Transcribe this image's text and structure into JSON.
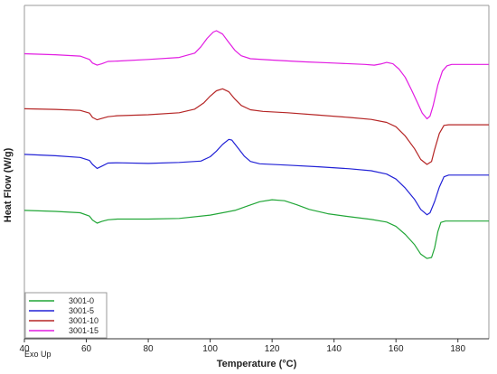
{
  "chart_data": {
    "type": "line",
    "title": "",
    "xlabel": "Temperature (°C)",
    "ylabel": "Heat Flow (W/g)",
    "xlim": [
      40,
      190
    ],
    "ylim": [
      0,
      100
    ],
    "x_ticks": [
      40,
      60,
      80,
      100,
      120,
      140,
      160,
      180
    ],
    "y_ticks_shown": false,
    "grid": false,
    "legend_position": "bottom-left",
    "annotation": "Exo Up",
    "series": [
      {
        "name": "3001-0",
        "color": "#21a637",
        "points": [
          [
            40,
            38.5
          ],
          [
            50,
            38.2
          ],
          [
            58,
            37.8
          ],
          [
            61,
            36.8
          ],
          [
            62,
            35.6
          ],
          [
            63.5,
            34.7
          ],
          [
            65,
            35.2
          ],
          [
            67,
            35.7
          ],
          [
            70,
            35.9
          ],
          [
            80,
            35.9
          ],
          [
            90,
            36.1
          ],
          [
            100,
            37.1
          ],
          [
            108,
            38.5
          ],
          [
            112,
            39.8
          ],
          [
            116,
            41.1
          ],
          [
            120,
            41.7
          ],
          [
            124,
            41.4
          ],
          [
            128,
            40.2
          ],
          [
            132,
            38.8
          ],
          [
            138,
            37.5
          ],
          [
            145,
            36.6
          ],
          [
            152,
            35.8
          ],
          [
            157,
            35.0
          ],
          [
            160,
            33.7
          ],
          [
            163,
            31.3
          ],
          [
            166,
            28.2
          ],
          [
            168,
            25.4
          ],
          [
            170,
            24.1
          ],
          [
            171.5,
            24.4
          ],
          [
            172.5,
            27.3
          ],
          [
            173.5,
            32.1
          ],
          [
            174.5,
            34.9
          ],
          [
            176,
            35.3
          ],
          [
            185,
            35.3
          ],
          [
            190,
            35.3
          ]
        ]
      },
      {
        "name": "3001-5",
        "color": "#2222d6",
        "points": [
          [
            40,
            55.3
          ],
          [
            50,
            54.9
          ],
          [
            58,
            54.4
          ],
          [
            61,
            53.5
          ],
          [
            62,
            52.3
          ],
          [
            63.5,
            51.1
          ],
          [
            65,
            51.8
          ],
          [
            67,
            52.7
          ],
          [
            70,
            52.8
          ],
          [
            80,
            52.6
          ],
          [
            90,
            52.9
          ],
          [
            97,
            53.3
          ],
          [
            100,
            54.6
          ],
          [
            102,
            56.3
          ],
          [
            104,
            58.3
          ],
          [
            106,
            59.8
          ],
          [
            107,
            59.6
          ],
          [
            109,
            57.2
          ],
          [
            111,
            54.8
          ],
          [
            113,
            53.2
          ],
          [
            116,
            52.5
          ],
          [
            125,
            52.1
          ],
          [
            135,
            51.6
          ],
          [
            145,
            51.0
          ],
          [
            152,
            50.4
          ],
          [
            157,
            49.4
          ],
          [
            160,
            47.9
          ],
          [
            163,
            45.2
          ],
          [
            166,
            41.8
          ],
          [
            168,
            38.8
          ],
          [
            170,
            37.2
          ],
          [
            171,
            37.8
          ],
          [
            172.5,
            41.2
          ],
          [
            174,
            45.5
          ],
          [
            175.5,
            48.6
          ],
          [
            177,
            49.1
          ],
          [
            185,
            49.1
          ],
          [
            190,
            49.1
          ]
        ]
      },
      {
        "name": "3001-10",
        "color": "#b52525",
        "points": [
          [
            40,
            69.0
          ],
          [
            50,
            68.8
          ],
          [
            58,
            68.5
          ],
          [
            61,
            67.7
          ],
          [
            62,
            66.4
          ],
          [
            63.5,
            65.7
          ],
          [
            65,
            66.1
          ],
          [
            67,
            66.6
          ],
          [
            70,
            66.9
          ],
          [
            80,
            67.2
          ],
          [
            90,
            67.8
          ],
          [
            95,
            68.9
          ],
          [
            98,
            70.8
          ],
          [
            100,
            72.8
          ],
          [
            102,
            74.4
          ],
          [
            104,
            75.0
          ],
          [
            106,
            74.1
          ],
          [
            108,
            71.9
          ],
          [
            110,
            70.0
          ],
          [
            113,
            68.7
          ],
          [
            117,
            68.2
          ],
          [
            125,
            67.8
          ],
          [
            135,
            67.1
          ],
          [
            145,
            66.4
          ],
          [
            152,
            65.8
          ],
          [
            157,
            64.9
          ],
          [
            160,
            63.6
          ],
          [
            163,
            60.8
          ],
          [
            166,
            57.0
          ],
          [
            168,
            53.8
          ],
          [
            170,
            52.3
          ],
          [
            171.5,
            53.2
          ],
          [
            172.5,
            56.8
          ],
          [
            174,
            61.6
          ],
          [
            175.5,
            64.0
          ],
          [
            177,
            64.2
          ],
          [
            185,
            64.2
          ],
          [
            190,
            64.2
          ]
        ]
      },
      {
        "name": "3001-15",
        "color": "#e21ce2",
        "points": [
          [
            40,
            85.5
          ],
          [
            50,
            85.2
          ],
          [
            58,
            84.8
          ],
          [
            61,
            83.8
          ],
          [
            62,
            82.7
          ],
          [
            63.5,
            82.1
          ],
          [
            65,
            82.5
          ],
          [
            67,
            83.2
          ],
          [
            70,
            83.3
          ],
          [
            80,
            83.8
          ],
          [
            90,
            84.4
          ],
          [
            95,
            85.7
          ],
          [
            97,
            87.6
          ],
          [
            99,
            90.1
          ],
          [
            101,
            92.0
          ],
          [
            102,
            92.4
          ],
          [
            104,
            91.4
          ],
          [
            106,
            88.9
          ],
          [
            108,
            86.5
          ],
          [
            110,
            84.9
          ],
          [
            113,
            84.0
          ],
          [
            120,
            83.6
          ],
          [
            130,
            83.1
          ],
          [
            140,
            82.7
          ],
          [
            150,
            82.3
          ],
          [
            153,
            82.1
          ],
          [
            155,
            82.4
          ],
          [
            157,
            82.9
          ],
          [
            159,
            82.5
          ],
          [
            161,
            80.9
          ],
          [
            163,
            78.4
          ],
          [
            165,
            74.7
          ],
          [
            167,
            70.7
          ],
          [
            168.5,
            67.7
          ],
          [
            170,
            66.0
          ],
          [
            171,
            66.8
          ],
          [
            172,
            69.9
          ],
          [
            173.5,
            76.1
          ],
          [
            175,
            80.3
          ],
          [
            176.5,
            81.9
          ],
          [
            178,
            82.3
          ],
          [
            185,
            82.3
          ],
          [
            190,
            82.3
          ]
        ]
      }
    ]
  }
}
